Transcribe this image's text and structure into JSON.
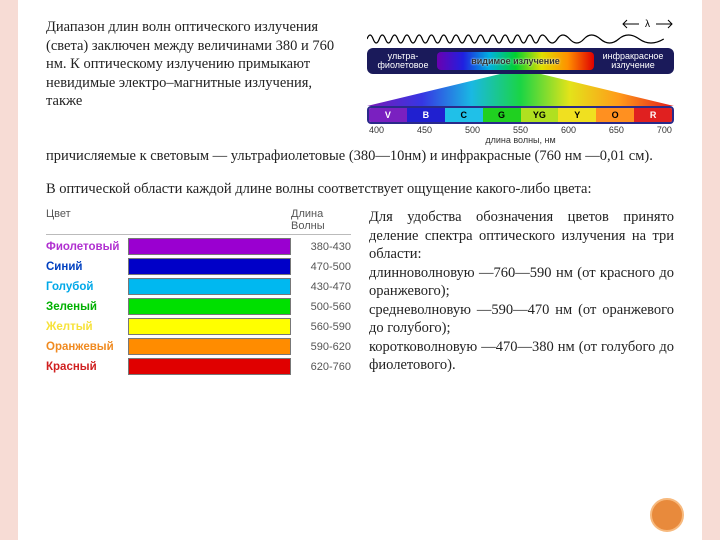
{
  "intro": {
    "part1": "Диапазон длин волн оптического излучения (света) заключен между  величинами 380 и 760 нм. К оптическому излучению примыкают невидимые электро–магнитные излучения, также",
    "part2": "причисляемые к световым — ультрафиолетовые (380—10нм) и инфракрасные (760 нм —0,01 см)."
  },
  "mid_text": "В оптической области каждой длине волны соответствует ощущение какого-либо цвета:",
  "right_text": {
    "p1": "Для удобства обозначения цветов принято деление спектра оптического излучения на три области:",
    "p2": "длинноволновую —760—590 нм (от красного до оранжевого);",
    "p3": "средневолновую —590—470 нм (от оранжевого до голубого);",
    "p4": "коротковолновую —470—380 нм (от голубого до фиолетового)."
  },
  "color_table": {
    "head_color": "Цвет",
    "head_wave": "Длина Волны",
    "rows": [
      {
        "name": "Фиолетовый",
        "name_color": "#b030d0",
        "bar": "#9a00d0",
        "wl": "380-430"
      },
      {
        "name": "Синий",
        "name_color": "#0040c0",
        "bar": "#0000c8",
        "wl": "470-500"
      },
      {
        "name": "Голубой",
        "name_color": "#00a8e8",
        "bar": "#00b8f0",
        "wl": "430-470"
      },
      {
        "name": "Зеленый",
        "name_color": "#00b000",
        "bar": "#00e000",
        "wl": "500-560"
      },
      {
        "name": "Желтый",
        "name_color": "#f7e23a",
        "bar": "#ffff00",
        "wl": "560-590"
      },
      {
        "name": "Оранжевый",
        "name_color": "#f08a20",
        "bar": "#ff8c00",
        "wl": "590-620"
      },
      {
        "name": "Красный",
        "name_color": "#d02020",
        "bar": "#e00000",
        "wl": "620-760"
      }
    ]
  },
  "spectrum_figure": {
    "lambda": "λ",
    "regions": {
      "uv": "ультра-\nфиолетовое",
      "vis": "видимое излучение",
      "ir": "инфракрасное\nизлучение"
    },
    "gradient": "linear-gradient(to right,#6a00b0,#2020e0,#00b0e0,#00d030,#e0e000,#ff9000,#e00000)",
    "bands": [
      {
        "label": "V",
        "bg": "#7a20c0",
        "fg": "#fff"
      },
      {
        "label": "B",
        "bg": "#2020d0",
        "fg": "#fff"
      },
      {
        "label": "C",
        "bg": "#20c0e8",
        "fg": "#000"
      },
      {
        "label": "G",
        "bg": "#20d020",
        "fg": "#000"
      },
      {
        "label": "YG",
        "bg": "#b0e020",
        "fg": "#000"
      },
      {
        "label": "Y",
        "bg": "#f0e020",
        "fg": "#000"
      },
      {
        "label": "O",
        "bg": "#ff9020",
        "fg": "#000"
      },
      {
        "label": "R",
        "bg": "#e02020",
        "fg": "#fff"
      }
    ],
    "ticks": [
      "400",
      "450",
      "500",
      "550",
      "600",
      "650",
      "700"
    ],
    "axis_label": "длина волны, нм"
  }
}
